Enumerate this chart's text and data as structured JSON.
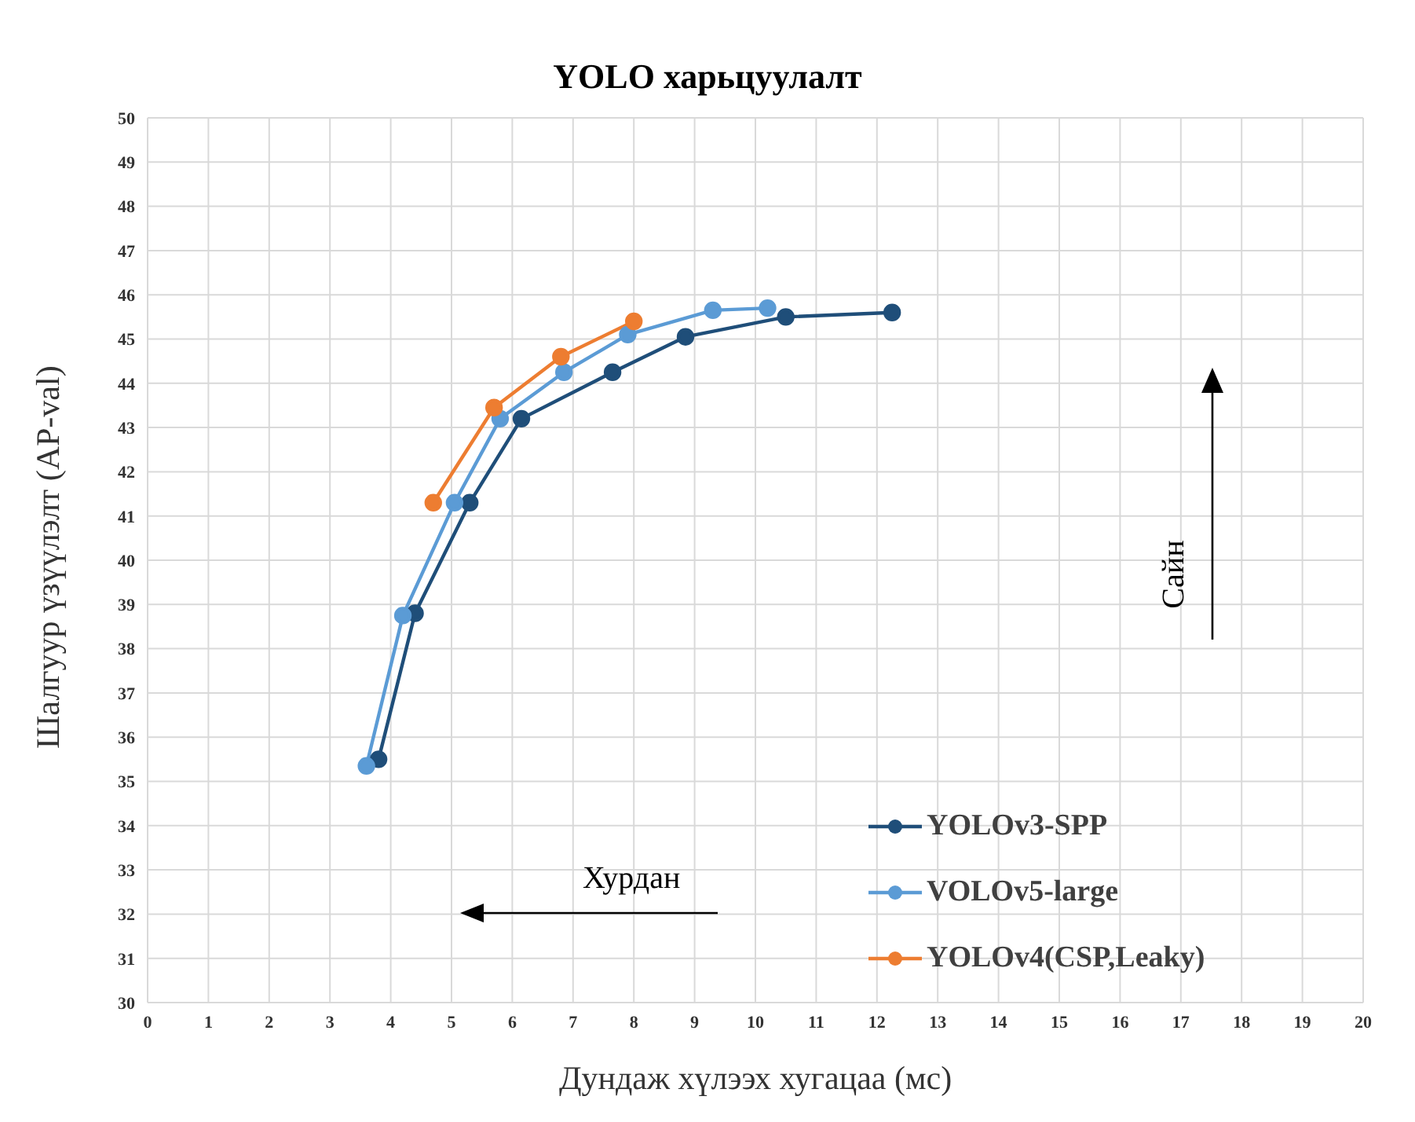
{
  "chart_data": {
    "type": "line",
    "title": "YOLO харьцуулалт",
    "xlabel": "Дундаж хүлээх хугацаа (мс)",
    "ylabel": "Шалгуур үзүүлэлт (AP-val)",
    "series": [
      {
        "name": "YOLOv3-SPP",
        "color": "#1f4e79",
        "x": [
          3.8,
          4.4,
          5.3,
          6.15,
          7.65,
          8.85,
          10.5,
          12.25
        ],
        "values": [
          35.5,
          38.8,
          41.3,
          43.2,
          44.25,
          45.05,
          45.5,
          45.6
        ]
      },
      {
        "name": "VOLOv5-large",
        "color": "#5b9bd5",
        "x": [
          3.6,
          4.2,
          5.05,
          5.8,
          6.85,
          7.9,
          9.3,
          10.2
        ],
        "values": [
          35.35,
          38.75,
          41.3,
          43.2,
          44.25,
          45.1,
          45.65,
          45.7
        ]
      },
      {
        "name": "YOLOv4(CSP,Leaky)",
        "color": "#ed7d31",
        "x": [
          4.7,
          5.7,
          6.8,
          8.0
        ],
        "values": [
          41.3,
          43.45,
          44.6,
          45.4
        ]
      }
    ],
    "xlim": [
      0,
      20
    ],
    "xticks": [
      0,
      1,
      2,
      3,
      4,
      5,
      6,
      7,
      8,
      9,
      10,
      11,
      12,
      13,
      14,
      15,
      16,
      17,
      18,
      19,
      20
    ],
    "ylim": [
      30,
      50
    ],
    "yticks": [
      30,
      31,
      32,
      33,
      34,
      35,
      36,
      37,
      38,
      39,
      40,
      41,
      42,
      43,
      44,
      45,
      46,
      47,
      48,
      49,
      50
    ],
    "grid": true,
    "legend": "bottom right",
    "marker": "circle",
    "line_style": "solid",
    "annotations": [
      "Хурдан",
      "Сайн"
    ]
  }
}
